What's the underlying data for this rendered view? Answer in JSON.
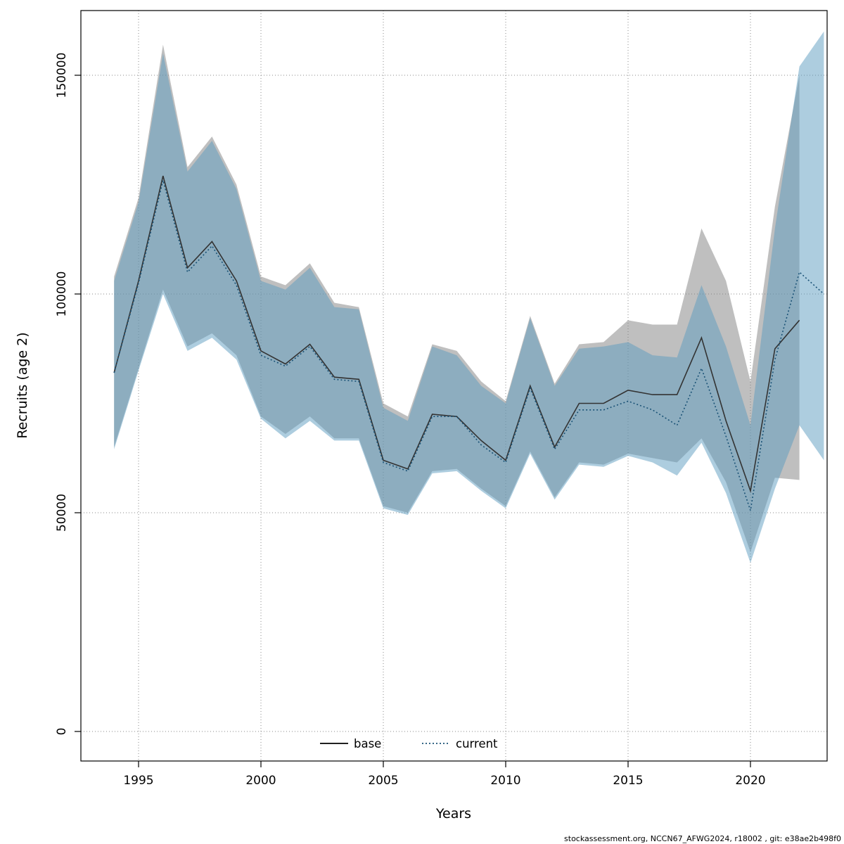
{
  "page": {
    "background": "#ffffff"
  },
  "chart_data": {
    "type": "line",
    "title": "",
    "xlabel": "Years",
    "ylabel": "Recruits (age 2)",
    "footer": "stockassessment.org, NCCN67_AFWG2024, r18002 , git: e38ae2b498f0",
    "grid": true,
    "legend_position": "bottom-center",
    "x": [
      1994,
      1995,
      1996,
      1997,
      1998,
      1999,
      2000,
      2001,
      2002,
      2003,
      2004,
      2005,
      2006,
      2007,
      2008,
      2009,
      2010,
      2011,
      2012,
      2013,
      2014,
      2015,
      2016,
      2017,
      2018,
      2019,
      2020,
      2021,
      2022,
      2023
    ],
    "xticks": [
      1995,
      2000,
      2005,
      2010,
      2015,
      2020
    ],
    "yticks": [
      0,
      50000,
      100000,
      150000
    ],
    "ytick_labels": [
      "0",
      "50000",
      "100000",
      "150000"
    ],
    "xlim": [
      1992.6,
      2023.2
    ],
    "ylim": [
      0,
      165000
    ],
    "series": [
      {
        "name": "base",
        "line_style": "solid",
        "color": "#333333",
        "band_color": "#808080",
        "band_opacity": 0.5,
        "values": [
          82000,
          103000,
          127000,
          106000,
          112000,
          103000,
          87000,
          84000,
          88500,
          81000,
          80500,
          62000,
          60000,
          72500,
          72000,
          66500,
          62000,
          79000,
          65000,
          75000,
          75000,
          78000,
          77000,
          77000,
          90000,
          71000,
          55000,
          87500,
          94000,
          null
        ],
        "lower": [
          65000,
          83000,
          101000,
          88000,
          91000,
          86000,
          72000,
          68000,
          72000,
          67000,
          67000,
          51500,
          50000,
          59500,
          60000,
          55500,
          51500,
          64000,
          53500,
          61500,
          61000,
          63500,
          62500,
          61500,
          67000,
          57000,
          41000,
          58000,
          57500,
          null
        ],
        "upper": [
          104000,
          122000,
          157000,
          129000,
          136000,
          125000,
          104000,
          102000,
          107000,
          98000,
          97000,
          75000,
          72000,
          88500,
          87000,
          80000,
          75500,
          95000,
          79500,
          88500,
          89000,
          94000,
          93000,
          93000,
          115000,
          103000,
          80000,
          120000,
          150000,
          null
        ]
      },
      {
        "name": "current",
        "line_style": "dotted",
        "color": "#1a5276",
        "band_color": "#5b9bbf",
        "band_opacity": 0.5,
        "values": [
          82000,
          102500,
          126000,
          105000,
          111000,
          102000,
          86000,
          83500,
          88000,
          80500,
          80000,
          61500,
          59500,
          72000,
          72000,
          65500,
          61500,
          78500,
          64500,
          73500,
          73500,
          75500,
          73500,
          70000,
          83000,
          67500,
          50500,
          85000,
          105000,
          100000
        ],
        "lower": [
          64500,
          82500,
          100000,
          87000,
          90000,
          85000,
          71500,
          67000,
          71000,
          66500,
          66500,
          51000,
          49500,
          59000,
          59500,
          55000,
          51000,
          63500,
          53000,
          61000,
          60500,
          63000,
          61500,
          58500,
          66000,
          54500,
          38500,
          55500,
          70000,
          62000
        ],
        "upper": [
          103000,
          121000,
          155000,
          128000,
          135000,
          124000,
          103000,
          101000,
          106000,
          97000,
          96500,
          74000,
          71000,
          88000,
          86000,
          79000,
          75000,
          94500,
          79000,
          87500,
          88000,
          89000,
          86000,
          85500,
          102000,
          88000,
          70000,
          115000,
          152000,
          160000
        ]
      }
    ]
  }
}
